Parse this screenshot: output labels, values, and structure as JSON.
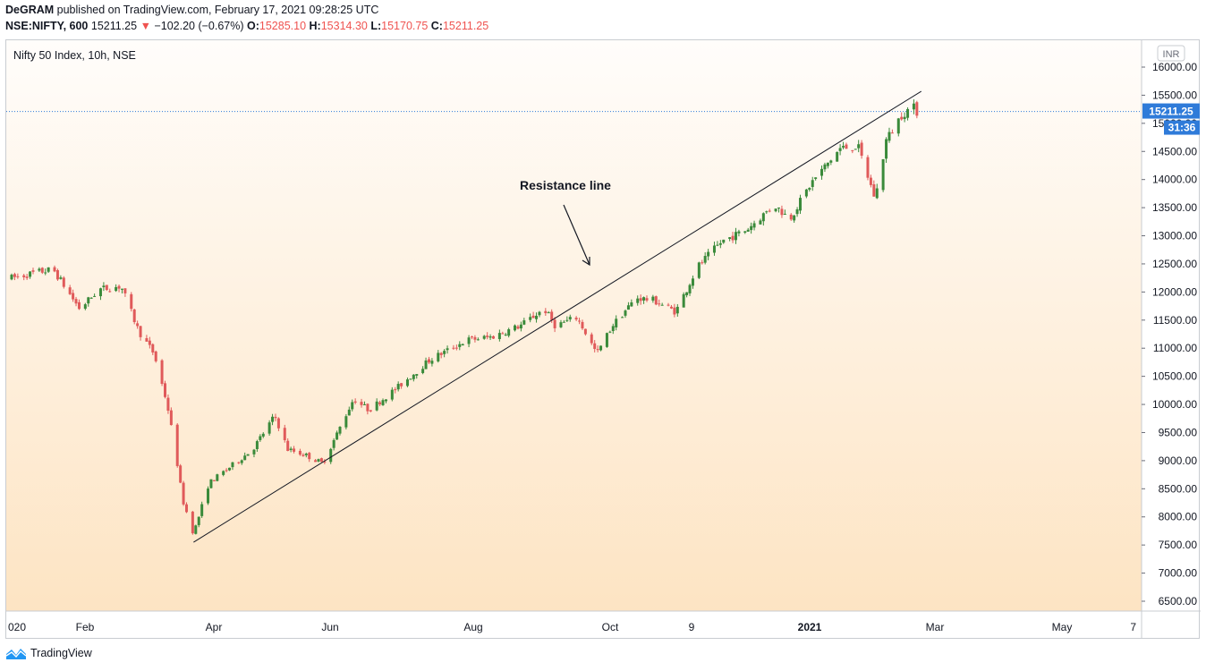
{
  "header": {
    "author": "DeGRAM",
    "published_text": "published on TradingView.com, February 17, 2021 09:28:25 UTC",
    "symbol": "NSE:NIFTY, 600",
    "price": "15211.25",
    "arrow": "▼",
    "change": "−102.20 (−0.67%)",
    "o_label": "O:",
    "o_value": "15285.10",
    "h_label": "H:",
    "h_value": "15314.30",
    "l_label": "L:",
    "l_value": "15170.75",
    "c_label": "C:",
    "c_value": "15211.25"
  },
  "footer": {
    "brand": "TradingView"
  },
  "colors": {
    "up": "#26a69a",
    "upCandle": "#3a8a3a",
    "down": "#e05a5a",
    "accent": "#2962ff",
    "price_badge": "#2f7bd9"
  },
  "chart_data": {
    "type": "candlestick",
    "title": "Nifty 50 Index, 10h, NSE",
    "currency_badge": "INR",
    "y_ticks": [
      "16000.00",
      "15500.00",
      "15000.00",
      "14500.00",
      "14000.00",
      "13500.00",
      "13000.00",
      "12500.00",
      "12000.00",
      "11500.00",
      "11000.00",
      "10500.00",
      "10000.00",
      "9500.00",
      "9000.00",
      "8500.00",
      "8000.00",
      "7500.00",
      "7000.00",
      "6500.00"
    ],
    "ylim": [
      6300,
      16250
    ],
    "x_ticks": [
      "020",
      "Feb",
      "Apr",
      "Jun",
      "Aug",
      "Oct",
      "9",
      "2021",
      "Mar",
      "May",
      "7"
    ],
    "bold_x_ticks": [
      "2021"
    ],
    "last_price_label": "15211.25",
    "countdown_label": "31:36",
    "last_price": 15211.25,
    "annotation": "Resistance line",
    "resistance_line": [
      {
        "date": "2020-03-24",
        "value": 7550
      },
      {
        "date": "2021-02-19",
        "value": 15570
      }
    ],
    "price_path": [
      {
        "date": "2020-01-01",
        "close": 12250
      },
      {
        "date": "2020-01-14",
        "close": 12360
      },
      {
        "date": "2020-01-20",
        "close": 12400
      },
      {
        "date": "2020-02-01",
        "close": 11700
      },
      {
        "date": "2020-02-10",
        "close": 12050
      },
      {
        "date": "2020-02-20",
        "close": 12100
      },
      {
        "date": "2020-02-28",
        "close": 11300
      },
      {
        "date": "2020-03-06",
        "close": 10900
      },
      {
        "date": "2020-03-12",
        "close": 10000
      },
      {
        "date": "2020-03-16",
        "close": 9100
      },
      {
        "date": "2020-03-19",
        "close": 8300
      },
      {
        "date": "2020-03-24",
        "close": 7700
      },
      {
        "date": "2020-03-31",
        "close": 8600
      },
      {
        "date": "2020-04-10",
        "close": 8900
      },
      {
        "date": "2020-04-20",
        "close": 9200
      },
      {
        "date": "2020-04-30",
        "close": 9800
      },
      {
        "date": "2020-05-06",
        "close": 9200
      },
      {
        "date": "2020-05-14",
        "close": 9100
      },
      {
        "date": "2020-05-22",
        "close": 8950
      },
      {
        "date": "2020-06-05",
        "close": 10100
      },
      {
        "date": "2020-06-12",
        "close": 9900
      },
      {
        "date": "2020-06-25",
        "close": 10300
      },
      {
        "date": "2020-07-10",
        "close": 10800
      },
      {
        "date": "2020-07-27",
        "close": 11150
      },
      {
        "date": "2020-08-07",
        "close": 11200
      },
      {
        "date": "2020-08-20",
        "close": 11400
      },
      {
        "date": "2020-08-31",
        "close": 11700
      },
      {
        "date": "2020-09-05",
        "close": 11400
      },
      {
        "date": "2020-09-15",
        "close": 11550
      },
      {
        "date": "2020-09-24",
        "close": 10900
      },
      {
        "date": "2020-10-01",
        "close": 11400
      },
      {
        "date": "2020-10-12",
        "close": 11900
      },
      {
        "date": "2020-10-20",
        "close": 11850
      },
      {
        "date": "2020-10-30",
        "close": 11650
      },
      {
        "date": "2020-11-09",
        "close": 12450
      },
      {
        "date": "2020-11-20",
        "close": 12900
      },
      {
        "date": "2020-12-01",
        "close": 13100
      },
      {
        "date": "2020-12-14",
        "close": 13550
      },
      {
        "date": "2020-12-21",
        "close": 13300
      },
      {
        "date": "2020-12-31",
        "close": 13950
      },
      {
        "date": "2021-01-13",
        "close": 14550
      },
      {
        "date": "2021-01-21",
        "close": 14600
      },
      {
        "date": "2021-01-29",
        "close": 13650
      },
      {
        "date": "2021-02-03",
        "close": 14700
      },
      {
        "date": "2021-02-10",
        "close": 15150
      },
      {
        "date": "2021-02-15",
        "close": 15300
      },
      {
        "date": "2021-02-17",
        "close": 15211.25
      }
    ]
  }
}
